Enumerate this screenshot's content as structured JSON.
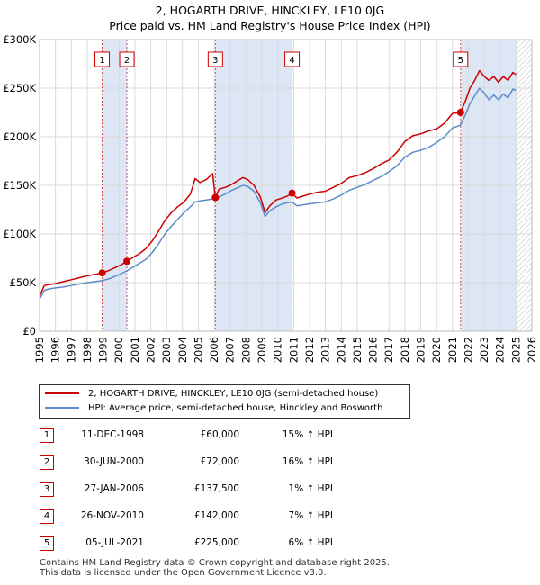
{
  "header": {
    "title": "2, HOGARTH DRIVE, HINCKLEY, LE10 0JG",
    "subtitle": "Price paid vs. HM Land Registry's House Price Index (HPI)"
  },
  "colors": {
    "price_paid": "#cc0000",
    "hpi": "#5b8cc8",
    "shade": "#dde6f5",
    "grid": "#d9d9d9"
  },
  "chart_data": {
    "type": "line",
    "title": "",
    "xlabel": "",
    "ylabel": "",
    "xlim": [
      1995,
      2026
    ],
    "ylim": [
      0,
      300000
    ],
    "y_ticks": [
      {
        "value": 0,
        "label": "£0"
      },
      {
        "value": 50000,
        "label": "£50K"
      },
      {
        "value": 100000,
        "label": "£100K"
      },
      {
        "value": 150000,
        "label": "£150K"
      },
      {
        "value": 200000,
        "label": "£200K"
      },
      {
        "value": 250000,
        "label": "£250K"
      },
      {
        "value": 300000,
        "label": "£300K"
      }
    ],
    "x_ticks": [
      "1995",
      "1996",
      "1997",
      "1998",
      "1999",
      "2000",
      "2001",
      "2002",
      "2003",
      "2004",
      "2005",
      "2006",
      "2007",
      "2008",
      "2009",
      "2010",
      "2011",
      "2012",
      "2013",
      "2014",
      "2015",
      "2016",
      "2017",
      "2018",
      "2019",
      "2020",
      "2021",
      "2022",
      "2023",
      "2024",
      "2025",
      "2026"
    ],
    "grid": true,
    "shaded_ranges": [
      [
        1998.94,
        2000.5
      ],
      [
        2006.07,
        2010.9
      ],
      [
        2021.51,
        2025.0
      ]
    ],
    "future_hatch_start": 2025.0,
    "series": [
      {
        "name": "2, HOGARTH DRIVE, HINCKLEY, LE10 0JG (semi-detached house)",
        "color": "#cc0000",
        "points": [
          [
            1995.0,
            36000
          ],
          [
            1995.3,
            47000
          ],
          [
            1995.6,
            48000
          ],
          [
            1996.0,
            49000
          ],
          [
            1996.5,
            51000
          ],
          [
            1997.0,
            53000
          ],
          [
            1997.5,
            55000
          ],
          [
            1998.0,
            57000
          ],
          [
            1998.5,
            58500
          ],
          [
            1998.94,
            60000
          ],
          [
            1999.3,
            62000
          ],
          [
            1999.7,
            65000
          ],
          [
            2000.1,
            68000
          ],
          [
            2000.5,
            72000
          ],
          [
            2000.9,
            76000
          ],
          [
            2001.3,
            80000
          ],
          [
            2001.7,
            85000
          ],
          [
            2002.1,
            93000
          ],
          [
            2002.5,
            103000
          ],
          [
            2002.9,
            114000
          ],
          [
            2003.3,
            122000
          ],
          [
            2003.7,
            128000
          ],
          [
            2004.1,
            133000
          ],
          [
            2004.5,
            141000
          ],
          [
            2004.8,
            157000
          ],
          [
            2005.1,
            153000
          ],
          [
            2005.5,
            156000
          ],
          [
            2005.9,
            162000
          ],
          [
            2006.0,
            147000
          ],
          [
            2006.07,
            137500
          ],
          [
            2006.3,
            146000
          ],
          [
            2006.7,
            148000
          ],
          [
            2007.0,
            150000
          ],
          [
            2007.4,
            154000
          ],
          [
            2007.8,
            158000
          ],
          [
            2008.1,
            156000
          ],
          [
            2008.5,
            150000
          ],
          [
            2008.9,
            138000
          ],
          [
            2009.2,
            122000
          ],
          [
            2009.5,
            129000
          ],
          [
            2009.9,
            135000
          ],
          [
            2010.3,
            137000
          ],
          [
            2010.6,
            139000
          ],
          [
            2010.9,
            142000
          ],
          [
            2011.2,
            137000
          ],
          [
            2011.6,
            139000
          ],
          [
            2012.0,
            141000
          ],
          [
            2012.5,
            143000
          ],
          [
            2013.0,
            144000
          ],
          [
            2013.5,
            148000
          ],
          [
            2014.0,
            152000
          ],
          [
            2014.5,
            158000
          ],
          [
            2015.0,
            160000
          ],
          [
            2015.5,
            163000
          ],
          [
            2016.0,
            167000
          ],
          [
            2016.5,
            172000
          ],
          [
            2017.0,
            176000
          ],
          [
            2017.5,
            184000
          ],
          [
            2018.0,
            195000
          ],
          [
            2018.5,
            201000
          ],
          [
            2019.0,
            203000
          ],
          [
            2019.5,
            206000
          ],
          [
            2020.0,
            208000
          ],
          [
            2020.5,
            214000
          ],
          [
            2021.0,
            224000
          ],
          [
            2021.51,
            225000
          ],
          [
            2021.8,
            236000
          ],
          [
            2022.1,
            250000
          ],
          [
            2022.4,
            258000
          ],
          [
            2022.7,
            268000
          ],
          [
            2023.0,
            262000
          ],
          [
            2023.3,
            258000
          ],
          [
            2023.6,
            262000
          ],
          [
            2023.9,
            256000
          ],
          [
            2024.2,
            262000
          ],
          [
            2024.5,
            258000
          ],
          [
            2024.8,
            266000
          ],
          [
            2025.0,
            264000
          ]
        ]
      },
      {
        "name": "HPI: Average price, semi-detached house, Hinckley and Bosworth",
        "color": "#5b8cc8",
        "points": [
          [
            1995.0,
            33000
          ],
          [
            1995.3,
            42000
          ],
          [
            1995.6,
            43500
          ],
          [
            1996.0,
            44500
          ],
          [
            1996.5,
            45500
          ],
          [
            1997.0,
            47000
          ],
          [
            1997.5,
            48500
          ],
          [
            1998.0,
            50000
          ],
          [
            1998.5,
            51000
          ],
          [
            1998.94,
            52000
          ],
          [
            1999.3,
            53500
          ],
          [
            1999.7,
            56000
          ],
          [
            2000.1,
            59000
          ],
          [
            2000.5,
            62000
          ],
          [
            2000.9,
            66000
          ],
          [
            2001.3,
            70000
          ],
          [
            2001.7,
            74000
          ],
          [
            2002.1,
            81000
          ],
          [
            2002.5,
            90000
          ],
          [
            2002.9,
            100000
          ],
          [
            2003.3,
            108000
          ],
          [
            2003.7,
            115000
          ],
          [
            2004.1,
            122000
          ],
          [
            2004.5,
            128000
          ],
          [
            2004.8,
            133000
          ],
          [
            2005.1,
            134000
          ],
          [
            2005.5,
            135000
          ],
          [
            2005.9,
            136000
          ],
          [
            2006.07,
            136500
          ],
          [
            2006.3,
            138000
          ],
          [
            2006.7,
            141000
          ],
          [
            2007.0,
            144000
          ],
          [
            2007.4,
            147000
          ],
          [
            2007.8,
            150000
          ],
          [
            2008.1,
            149000
          ],
          [
            2008.5,
            144000
          ],
          [
            2008.9,
            132000
          ],
          [
            2009.2,
            118000
          ],
          [
            2009.5,
            124000
          ],
          [
            2009.9,
            128000
          ],
          [
            2010.3,
            131000
          ],
          [
            2010.6,
            132000
          ],
          [
            2010.9,
            133000
          ],
          [
            2011.2,
            129000
          ],
          [
            2011.6,
            130000
          ],
          [
            2012.0,
            131000
          ],
          [
            2012.5,
            132000
          ],
          [
            2013.0,
            133000
          ],
          [
            2013.5,
            136000
          ],
          [
            2014.0,
            140000
          ],
          [
            2014.5,
            145000
          ],
          [
            2015.0,
            148000
          ],
          [
            2015.5,
            151000
          ],
          [
            2016.0,
            155000
          ],
          [
            2016.5,
            159000
          ],
          [
            2017.0,
            164000
          ],
          [
            2017.5,
            170000
          ],
          [
            2018.0,
            179000
          ],
          [
            2018.5,
            184000
          ],
          [
            2019.0,
            186000
          ],
          [
            2019.5,
            189000
          ],
          [
            2020.0,
            194000
          ],
          [
            2020.5,
            200000
          ],
          [
            2021.0,
            209000
          ],
          [
            2021.51,
            212000
          ],
          [
            2021.8,
            222000
          ],
          [
            2022.1,
            234000
          ],
          [
            2022.4,
            242000
          ],
          [
            2022.7,
            250000
          ],
          [
            2023.0,
            245000
          ],
          [
            2023.3,
            238000
          ],
          [
            2023.6,
            243000
          ],
          [
            2023.9,
            238000
          ],
          [
            2024.2,
            244000
          ],
          [
            2024.5,
            240000
          ],
          [
            2024.8,
            249000
          ],
          [
            2025.0,
            248000
          ]
        ]
      }
    ],
    "sales": [
      {
        "id": "1",
        "x": 1998.94,
        "y": 60000
      },
      {
        "id": "2",
        "x": 2000.5,
        "y": 72000
      },
      {
        "id": "3",
        "x": 2006.07,
        "y": 137500
      },
      {
        "id": "4",
        "x": 2010.9,
        "y": 142000
      },
      {
        "id": "5",
        "x": 2021.51,
        "y": 225000
      }
    ]
  },
  "legend": {
    "items": [
      {
        "label": "2, HOGARTH DRIVE, HINCKLEY, LE10 0JG (semi-detached house)"
      },
      {
        "label": "HPI: Average price, semi-detached house, Hinckley and Bosworth"
      }
    ]
  },
  "sales_table": [
    {
      "num": "1",
      "date": "11-DEC-1998",
      "price": "£60,000",
      "hpi": "15% ↑ HPI"
    },
    {
      "num": "2",
      "date": "30-JUN-2000",
      "price": "£72,000",
      "hpi": "16% ↑ HPI"
    },
    {
      "num": "3",
      "date": "27-JAN-2006",
      "price": "£137,500",
      "hpi": "1% ↑ HPI"
    },
    {
      "num": "4",
      "date": "26-NOV-2010",
      "price": "£142,000",
      "hpi": "7% ↑ HPI"
    },
    {
      "num": "5",
      "date": "05-JUL-2021",
      "price": "£225,000",
      "hpi": "6% ↑ HPI"
    }
  ],
  "footer": {
    "line1": "Contains HM Land Registry data © Crown copyright and database right 2025.",
    "line2": "This data is licensed under the Open Government Licence v3.0."
  }
}
